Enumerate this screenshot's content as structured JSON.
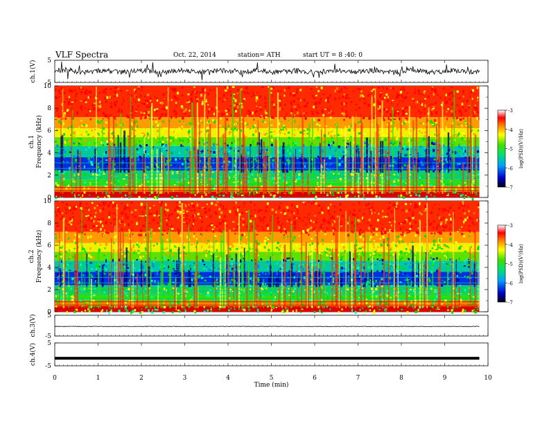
{
  "header": {
    "title": "VLF  Spectra",
    "date": "Oct. 22, 2014",
    "station": "station= ATH",
    "start": "start  UT  =   8 :40: 0"
  },
  "chart_data": [
    {
      "type": "line",
      "ylabel": "ch.1(V)",
      "y_ticks": [
        "5",
        "-5"
      ],
      "ylim": [
        -5,
        5
      ],
      "description_series": [
        {
          "values": [],
          "mean": 0,
          "range": [
            -2.5,
            2.5
          ]
        }
      ]
    },
    {
      "type": "heatmap",
      "ylabel": [
        "ch.1",
        "Frequency  (kHz)"
      ],
      "ylim": [
        0,
        10
      ],
      "y_ticks": [
        "0",
        "2",
        "4",
        "6",
        "8",
        "10"
      ],
      "colorbar": {
        "label": "log(PSD)(V²/Hz)",
        "ticks": [
          "-3",
          "-4",
          "-5",
          "-6",
          "-7"
        ],
        "range": [
          -7,
          -3
        ]
      }
    },
    {
      "type": "heatmap",
      "ylabel": [
        "ch.2",
        "Frequency  (kHz)"
      ],
      "ylim": [
        0,
        10
      ],
      "y_ticks": [
        "0",
        "2",
        "4",
        "6",
        "8",
        "10"
      ],
      "colorbar": {
        "label": "log(PSD)(V²/Hz)",
        "ticks": [
          "-3",
          "-4",
          "-5",
          "-6",
          "-7"
        ],
        "range": [
          -7,
          -3
        ]
      }
    },
    {
      "type": "line",
      "ylabel": "ch.3(V)",
      "y_ticks": [
        "5",
        "-5"
      ],
      "ylim": [
        -5,
        5
      ]
    },
    {
      "type": "line",
      "ylabel": "ch.4(V)",
      "y_ticks": [
        "5",
        "-5"
      ],
      "ylim": [
        -5,
        5
      ]
    }
  ],
  "x_axis": {
    "label": "Time  (min)",
    "ticks": [
      "0",
      "1",
      "2",
      "3",
      "4",
      "5",
      "6",
      "7",
      "8",
      "9",
      "10"
    ],
    "xlim": [
      0,
      10
    ],
    "data_end": 9.8
  }
}
